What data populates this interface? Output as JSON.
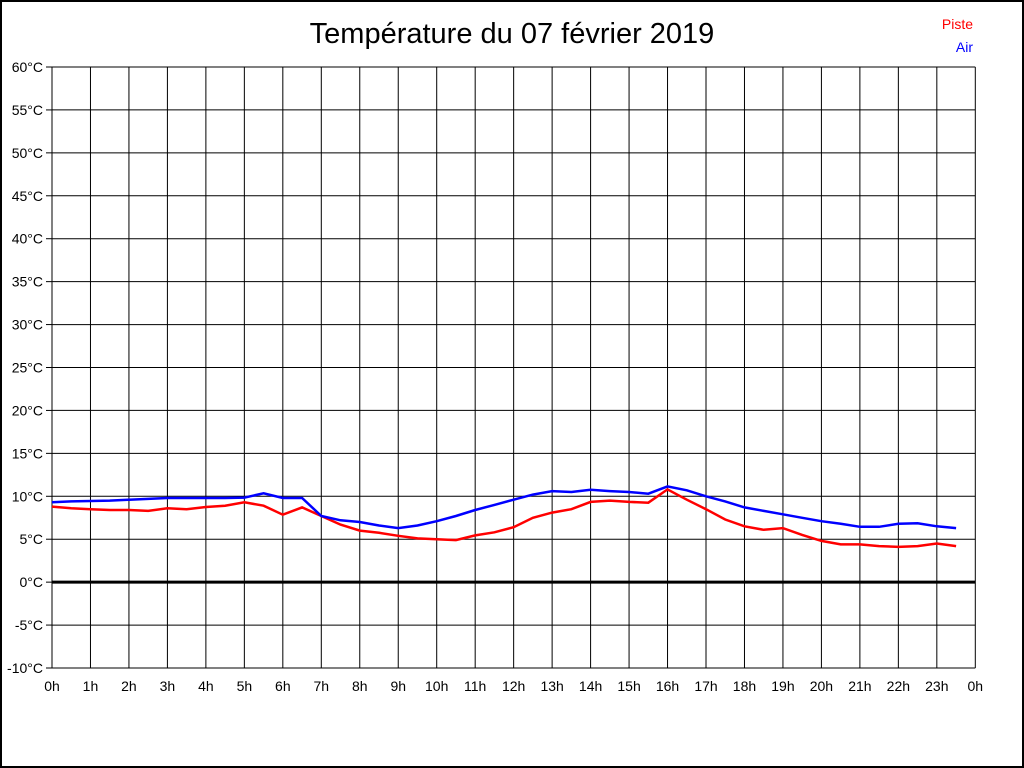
{
  "figure": {
    "title": "Température du 07 février 2019"
  },
  "legend": {
    "items": [
      {
        "label": "Piste",
        "color": "#ff0000"
      },
      {
        "label": "Air",
        "color": "#0000ff"
      }
    ]
  },
  "chart_data": {
    "type": "line",
    "title": "Température du 07 février 2019",
    "xlabel": "",
    "ylabel": "",
    "x_unit": "hour of day",
    "y_unit": "°C",
    "xlim": [
      0,
      24
    ],
    "ylim": [
      -10,
      60
    ],
    "grid": true,
    "zero_line_thick": true,
    "legend_position": "top-right",
    "x_tick_labels": [
      "0h",
      "1h",
      "2h",
      "3h",
      "4h",
      "5h",
      "6h",
      "7h",
      "8h",
      "9h",
      "10h",
      "11h",
      "12h",
      "13h",
      "14h",
      "15h",
      "16h",
      "17h",
      "18h",
      "19h",
      "20h",
      "21h",
      "22h",
      "23h",
      "0h"
    ],
    "y_ticks": [
      {
        "value": 60,
        "label": "60°C"
      },
      {
        "value": 55,
        "label": "55°C"
      },
      {
        "value": 50,
        "label": "50°C"
      },
      {
        "value": 45,
        "label": "45°C"
      },
      {
        "value": 40,
        "label": "40°C"
      },
      {
        "value": 35,
        "label": "35°C"
      },
      {
        "value": 30,
        "label": "30°C"
      },
      {
        "value": 25,
        "label": "25°C"
      },
      {
        "value": 20,
        "label": "20°C"
      },
      {
        "value": 15,
        "label": "15°C"
      },
      {
        "value": 10,
        "label": "10°C"
      },
      {
        "value": 5,
        "label": "5°C"
      },
      {
        "value": 0,
        "label": "0°C"
      },
      {
        "value": -5,
        "label": "-5°C"
      },
      {
        "value": -10,
        "label": "-10°C"
      }
    ],
    "x_hours": [
      0,
      0.5,
      1,
      1.5,
      2,
      2.5,
      3,
      3.5,
      4,
      4.5,
      5,
      5.5,
      6,
      6.5,
      7,
      7.5,
      8,
      8.5,
      9,
      9.5,
      10,
      10.5,
      11,
      11.5,
      12,
      12.5,
      13,
      13.5,
      14,
      14.5,
      15,
      15.5,
      16,
      16.5,
      17,
      17.5,
      18,
      18.5,
      19,
      19.5,
      20,
      20.5,
      21,
      21.5,
      22,
      22.5,
      23,
      23.5
    ],
    "series": [
      {
        "name": "Piste",
        "color": "#ff0000",
        "values": [
          8.8,
          8.6,
          8.5,
          8.4,
          8.4,
          8.3,
          8.6,
          8.5,
          8.75,
          8.9,
          9.3,
          8.9,
          7.85,
          8.7,
          7.7,
          6.7,
          6.0,
          5.75,
          5.4,
          5.1,
          5.0,
          4.9,
          5.45,
          5.8,
          6.4,
          7.5,
          8.1,
          8.5,
          9.35,
          9.5,
          9.35,
          9.25,
          10.8,
          9.6,
          8.5,
          7.3,
          6.5,
          6.1,
          6.3,
          5.5,
          4.8,
          4.4,
          4.4,
          4.2,
          4.1,
          4.2,
          4.5,
          4.2
        ]
      },
      {
        "name": "Air",
        "color": "#0000ff",
        "values": [
          9.3,
          9.4,
          9.45,
          9.5,
          9.6,
          9.7,
          9.8,
          9.8,
          9.8,
          9.8,
          9.85,
          10.35,
          9.8,
          9.8,
          7.7,
          7.2,
          7.0,
          6.6,
          6.3,
          6.6,
          7.1,
          7.7,
          8.4,
          9.0,
          9.6,
          10.2,
          10.6,
          10.5,
          10.75,
          10.6,
          10.5,
          10.3,
          11.15,
          10.7,
          10.0,
          9.4,
          8.7,
          8.3,
          7.9,
          7.5,
          7.1,
          6.8,
          6.45,
          6.45,
          6.8,
          6.85,
          6.5,
          6.3
        ]
      }
    ]
  }
}
